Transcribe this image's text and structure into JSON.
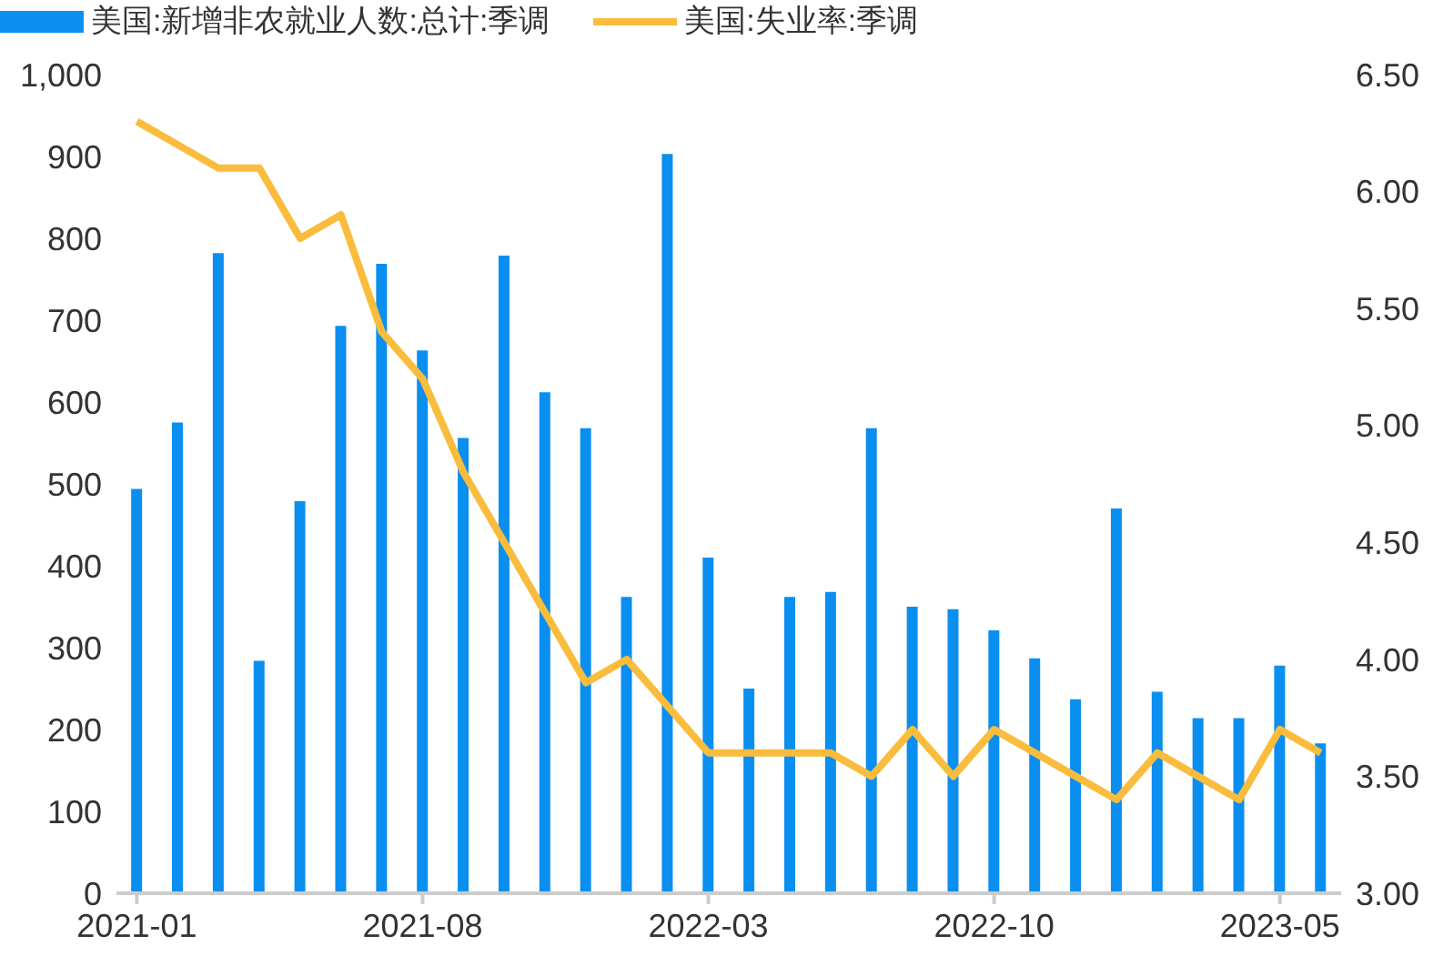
{
  "chart_data": {
    "type": "bar",
    "categories": [
      "2021-01",
      null,
      null,
      null,
      null,
      null,
      null,
      "2021-08",
      null,
      null,
      null,
      null,
      null,
      null,
      "2022-03",
      null,
      null,
      null,
      null,
      null,
      null,
      "2022-10",
      null,
      null,
      null,
      null,
      null,
      null,
      "2023-05",
      null
    ],
    "series": [
      {
        "name": "美国:新增非农就业人数:总计:季调",
        "color": "#0a8ff0",
        "values": [
          494,
          575,
          782,
          284,
          479,
          693,
          769,
          663,
          556,
          779,
          612,
          568,
          362,
          903,
          410,
          250,
          362,
          368,
          568,
          350,
          347,
          321,
          287,
          237,
          470,
          246,
          214,
          214,
          278,
          183
        ]
      },
      {
        "name": "美国:失业率:季调",
        "type": "line",
        "axis": "y2",
        "color": "#f9bc3c",
        "values": [
          6.3,
          6.2,
          6.1,
          6.1,
          5.8,
          5.9,
          5.4,
          5.2,
          4.8,
          4.5,
          4.2,
          3.9,
          4.0,
          3.8,
          3.6,
          3.6,
          3.6,
          3.6,
          3.5,
          3.7,
          3.5,
          3.7,
          3.6,
          3.5,
          3.4,
          3.6,
          3.5,
          3.4,
          3.7,
          3.6
        ]
      }
    ],
    "ylim": [
      0,
      1000
    ],
    "yticks": [
      0,
      100,
      200,
      300,
      400,
      500,
      600,
      700,
      800,
      900,
      {
        "value": 1000,
        "label": "1,000"
      }
    ],
    "y2lim": [
      3,
      6.5
    ],
    "y2ticks": [
      {
        "value": 3,
        "label": "3.00"
      },
      {
        "value": 3.5,
        "label": "3.50"
      },
      {
        "value": 4,
        "label": "4.00"
      },
      {
        "value": 4.5,
        "label": "4.50"
      },
      {
        "value": 5,
        "label": "5.00"
      },
      {
        "value": 5.5,
        "label": "5.50"
      },
      {
        "value": 6,
        "label": "6.00"
      },
      {
        "value": 6.5,
        "label": "6.50"
      }
    ],
    "legend": "top left",
    "grid": false,
    "marker": "none",
    "line_style": "solid"
  }
}
